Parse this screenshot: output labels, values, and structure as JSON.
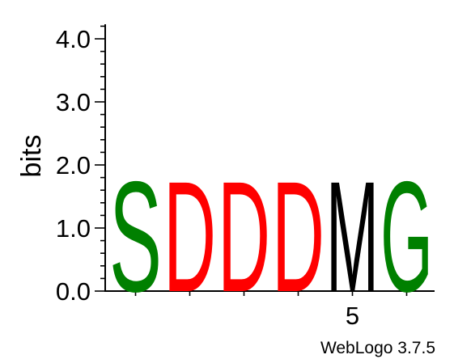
{
  "chart_data": {
    "type": "sequence-logo",
    "ylabel": "bits",
    "ylim": [
      0,
      4.32
    ],
    "y_ticks": [
      "0.0",
      "1.0",
      "2.0",
      "3.0",
      "4.0"
    ],
    "x_tick_labels": [
      {
        "position": 5,
        "label": "5"
      }
    ],
    "credit": "WebLogo 3.7.5",
    "positions": [
      {
        "index": 1,
        "letter": "S",
        "height": 1.8,
        "color": "#008000"
      },
      {
        "index": 2,
        "letter": "D",
        "height": 1.8,
        "color": "#ff0000"
      },
      {
        "index": 3,
        "letter": "D",
        "height": 1.8,
        "color": "#ff0000"
      },
      {
        "index": 4,
        "letter": "D",
        "height": 1.8,
        "color": "#ff0000"
      },
      {
        "index": 5,
        "letter": "M",
        "height": 1.8,
        "color": "#000000"
      },
      {
        "index": 6,
        "letter": "G",
        "height": 1.8,
        "color": "#008000"
      }
    ]
  }
}
